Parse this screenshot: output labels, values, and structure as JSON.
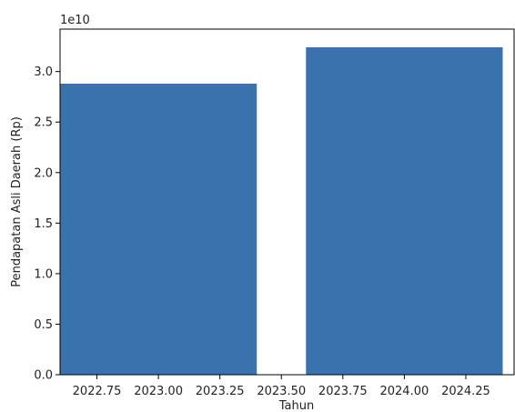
{
  "chart_data": {
    "type": "bar",
    "title": "",
    "xlabel": "Tahun",
    "ylabel": "Pendapatan Asli Daerah (Rp)",
    "offset_label": "1e10",
    "bar_color": "#3a72ae",
    "xlim": [
      2022.6,
      2024.45
    ],
    "ylim": [
      0,
      34200000000.0
    ],
    "bars": [
      {
        "x": 2023.0,
        "width": 0.8,
        "value": 28800000000.0
      },
      {
        "x": 2024.0,
        "width": 0.8,
        "value": 32400000000.0
      }
    ],
    "x_ticks": [
      2022.75,
      2023.0,
      2023.25,
      2023.5,
      2023.75,
      2024.0,
      2024.25
    ],
    "x_tick_labels": [
      "2022.75",
      "2023.00",
      "2023.25",
      "2023.50",
      "2023.75",
      "2024.00",
      "2024.25"
    ],
    "y_ticks": [
      0,
      5000000000.0,
      10000000000.0,
      15000000000.0,
      20000000000.0,
      25000000000.0,
      30000000000.0
    ],
    "y_tick_labels": [
      "0.0",
      "0.5",
      "1.0",
      "1.5",
      "2.0",
      "2.5",
      "3.0"
    ],
    "grid": false,
    "legend": "none"
  }
}
